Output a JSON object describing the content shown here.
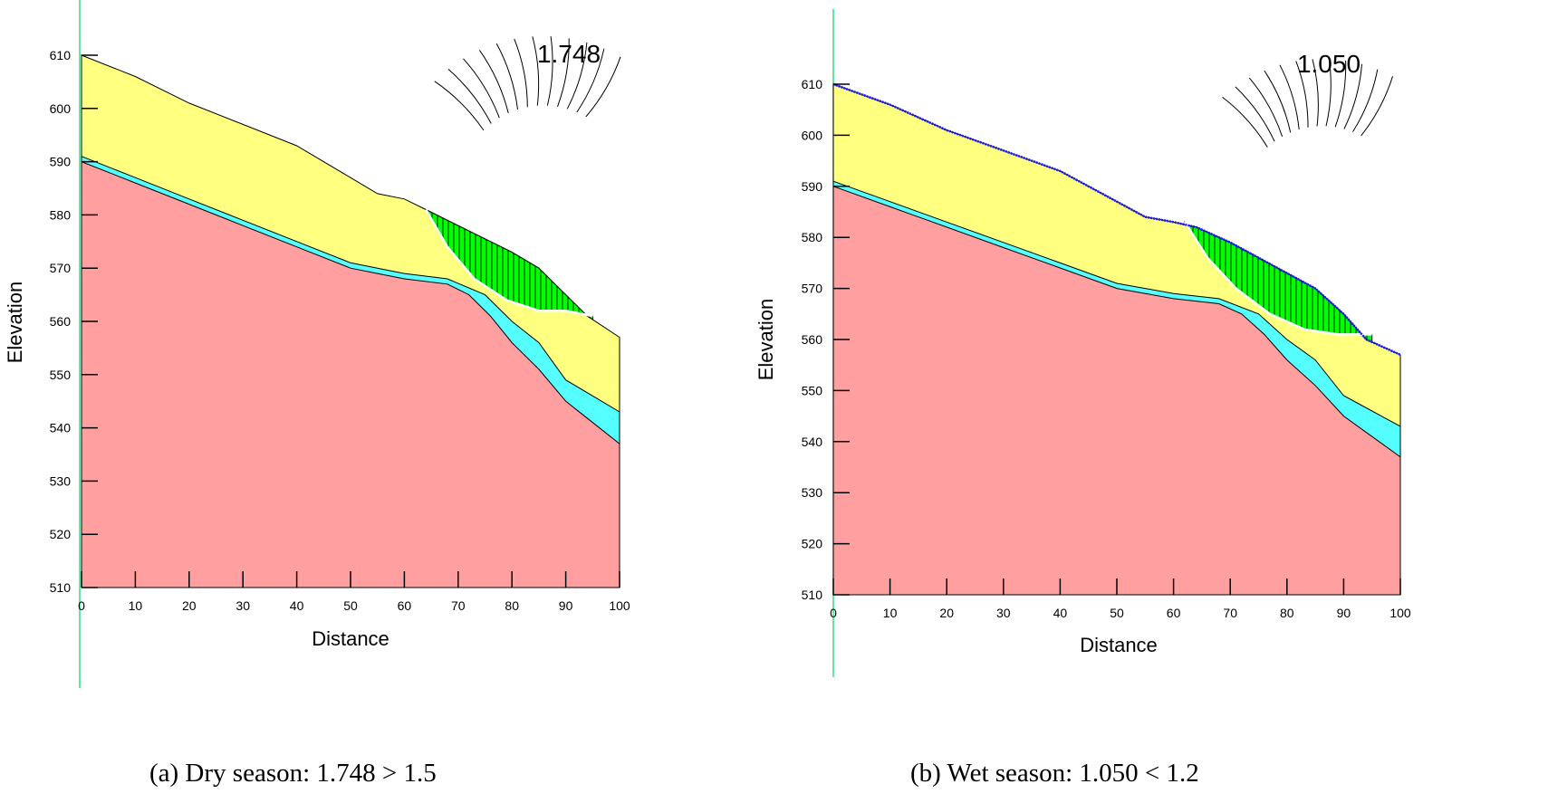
{
  "colors": {
    "top_layer": "#ffff80",
    "middle_layer": "#55ffff",
    "bedrock": "#ff9f9f",
    "slip_mass": "#00ff00",
    "guide_line": "#33dd88",
    "water_table": "#1a1aff"
  },
  "axes": {
    "xlabel": "Distance",
    "ylabel": "Elevation",
    "xlim": [
      0,
      100
    ],
    "ylim": [
      510,
      610
    ],
    "xticks": [
      0,
      10,
      20,
      30,
      40,
      50,
      60,
      70,
      80,
      90,
      100
    ],
    "yticks": [
      510,
      520,
      530,
      540,
      550,
      560,
      570,
      580,
      590,
      600,
      610
    ]
  },
  "chart_data": [
    {
      "type": "area",
      "panel": "a",
      "factor_of_safety": "1.748",
      "caption": "(a) Dry season: 1.748 > 1.5",
      "ground_surface": [
        [
          0,
          610
        ],
        [
          10,
          606
        ],
        [
          20,
          601
        ],
        [
          30,
          597
        ],
        [
          40,
          593
        ],
        [
          50,
          587
        ],
        [
          55,
          584
        ],
        [
          60,
          583
        ],
        [
          64,
          581
        ],
        [
          70,
          578
        ],
        [
          80,
          573
        ],
        [
          85,
          570
        ],
        [
          90,
          565
        ],
        [
          94,
          561
        ],
        [
          100,
          557
        ]
      ],
      "layer2_top": [
        [
          0,
          591
        ],
        [
          10,
          587
        ],
        [
          20,
          583
        ],
        [
          30,
          579
        ],
        [
          40,
          575
        ],
        [
          50,
          571
        ],
        [
          55,
          570
        ],
        [
          60,
          569
        ],
        [
          68,
          568
        ],
        [
          75,
          565
        ],
        [
          80,
          560
        ],
        [
          85,
          556
        ],
        [
          90,
          549
        ],
        [
          95,
          546
        ],
        [
          100,
          543
        ]
      ],
      "layer3_top": [
        [
          0,
          590
        ],
        [
          10,
          586
        ],
        [
          20,
          582
        ],
        [
          30,
          578
        ],
        [
          40,
          574
        ],
        [
          50,
          570
        ],
        [
          55,
          569
        ],
        [
          60,
          568
        ],
        [
          68,
          567
        ],
        [
          72,
          565
        ],
        [
          76,
          561
        ],
        [
          80,
          556
        ],
        [
          85,
          551
        ],
        [
          90,
          545
        ],
        [
          95,
          541
        ],
        [
          100,
          537
        ]
      ],
      "slip_surface": [
        [
          64,
          581
        ],
        [
          68,
          574
        ],
        [
          73,
          568
        ],
        [
          79,
          564
        ],
        [
          85,
          562
        ],
        [
          90,
          562
        ],
        [
          95,
          561
        ]
      ],
      "water_table": false
    },
    {
      "type": "area",
      "panel": "b",
      "factor_of_safety": "1.050",
      "caption": "(b) Wet season: 1.050 < 1.2",
      "ground_surface": [
        [
          0,
          610
        ],
        [
          10,
          606
        ],
        [
          20,
          601
        ],
        [
          30,
          597
        ],
        [
          40,
          593
        ],
        [
          50,
          587
        ],
        [
          55,
          584
        ],
        [
          60,
          583
        ],
        [
          64,
          582
        ],
        [
          70,
          579
        ],
        [
          80,
          573
        ],
        [
          85,
          570
        ],
        [
          90,
          565
        ],
        [
          94,
          560
        ],
        [
          100,
          557
        ]
      ],
      "layer2_top": [
        [
          0,
          591
        ],
        [
          10,
          587
        ],
        [
          20,
          583
        ],
        [
          30,
          579
        ],
        [
          40,
          575
        ],
        [
          50,
          571
        ],
        [
          55,
          570
        ],
        [
          60,
          569
        ],
        [
          68,
          568
        ],
        [
          75,
          565
        ],
        [
          80,
          560
        ],
        [
          85,
          556
        ],
        [
          90,
          549
        ],
        [
          95,
          546
        ],
        [
          100,
          543
        ]
      ],
      "layer3_top": [
        [
          0,
          590
        ],
        [
          10,
          586
        ],
        [
          20,
          582
        ],
        [
          30,
          578
        ],
        [
          40,
          574
        ],
        [
          50,
          570
        ],
        [
          55,
          569
        ],
        [
          60,
          568
        ],
        [
          68,
          567
        ],
        [
          72,
          565
        ],
        [
          76,
          561
        ],
        [
          80,
          556
        ],
        [
          85,
          551
        ],
        [
          90,
          545
        ],
        [
          95,
          541
        ],
        [
          100,
          537
        ]
      ],
      "slip_surface": [
        [
          62,
          583
        ],
        [
          66,
          576
        ],
        [
          71,
          570
        ],
        [
          77,
          565
        ],
        [
          83,
          562
        ],
        [
          89,
          561
        ],
        [
          95,
          561
        ]
      ],
      "water_table": true
    }
  ]
}
